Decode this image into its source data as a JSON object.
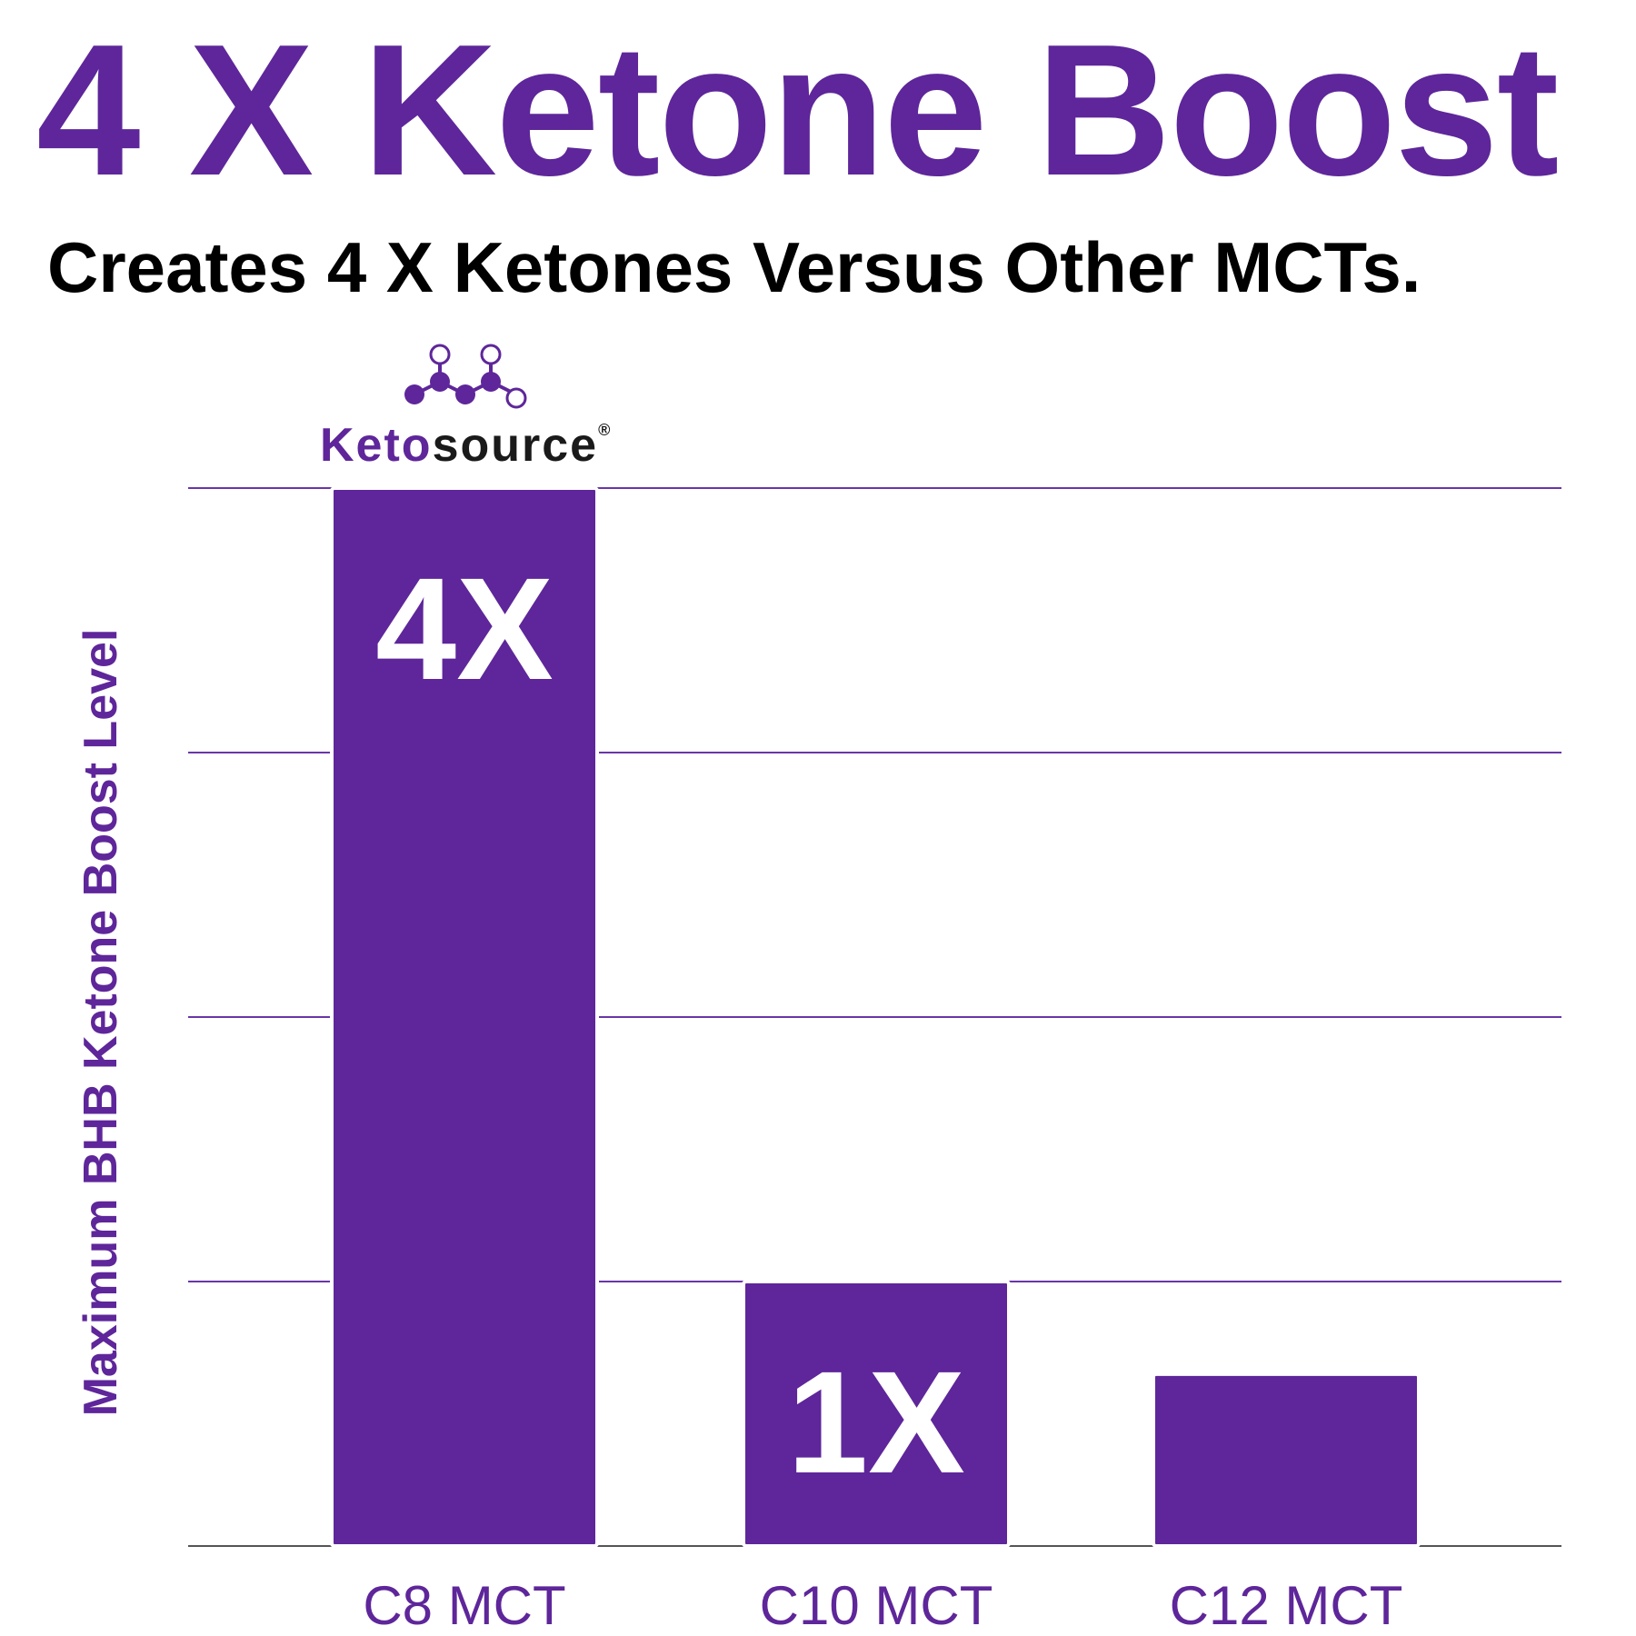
{
  "headline": "4 X Ketone Boost",
  "subtitle": "Creates 4 X Ketones Versus Other MCTs.",
  "logo": {
    "brand_prefix": "Keto",
    "brand_suffix": "source",
    "registered_mark": "®"
  },
  "colors": {
    "brand_purple": "#5e269a",
    "gridline": "#6a35a8",
    "axis": "#555555",
    "bar_label": "#ffffff"
  },
  "chart_data": {
    "type": "bar",
    "ylabel": "Maximum BHB Ketone Boost Level",
    "xlabel": "",
    "categories": [
      "C8 MCT",
      "C10 MCT",
      "C12 MCT"
    ],
    "values": [
      4,
      1,
      0.65
    ],
    "bar_labels": [
      "4X",
      "1X",
      ""
    ],
    "ylim": [
      0,
      4
    ],
    "grid": true,
    "gridline_values": [
      1,
      2,
      3,
      4
    ]
  }
}
